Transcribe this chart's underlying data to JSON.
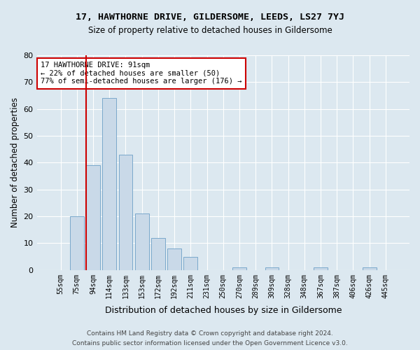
{
  "title1": "17, HAWTHORNE DRIVE, GILDERSOME, LEEDS, LS27 7YJ",
  "title2": "Size of property relative to detached houses in Gildersome",
  "xlabel": "Distribution of detached houses by size in Gildersome",
  "ylabel": "Number of detached properties",
  "categories": [
    "55sqm",
    "75sqm",
    "94sqm",
    "114sqm",
    "133sqm",
    "153sqm",
    "172sqm",
    "192sqm",
    "211sqm",
    "231sqm",
    "250sqm",
    "270sqm",
    "289sqm",
    "309sqm",
    "328sqm",
    "348sqm",
    "367sqm",
    "387sqm",
    "406sqm",
    "426sqm",
    "445sqm"
  ],
  "values": [
    0,
    20,
    39,
    64,
    43,
    21,
    12,
    8,
    5,
    0,
    0,
    1,
    0,
    1,
    0,
    0,
    1,
    0,
    0,
    1,
    0
  ],
  "bar_color": "#c9d9e8",
  "bar_edge_color": "#7aa8cc",
  "subject_line_color": "#cc0000",
  "annotation_line1": "17 HAWTHORNE DRIVE: 91sqm",
  "annotation_line2": "← 22% of detached houses are smaller (50)",
  "annotation_line3": "77% of semi-detached houses are larger (176) →",
  "annotation_box_color": "#ffffff",
  "annotation_box_edge": "#cc0000",
  "ylim": [
    0,
    80
  ],
  "yticks": [
    0,
    10,
    20,
    30,
    40,
    50,
    60,
    70,
    80
  ],
  "footnote1": "Contains HM Land Registry data © Crown copyright and database right 2024.",
  "footnote2": "Contains public sector information licensed under the Open Government Licence v3.0.",
  "fig_bg_color": "#dce8f0",
  "plot_bg_color": "#dce8f0"
}
